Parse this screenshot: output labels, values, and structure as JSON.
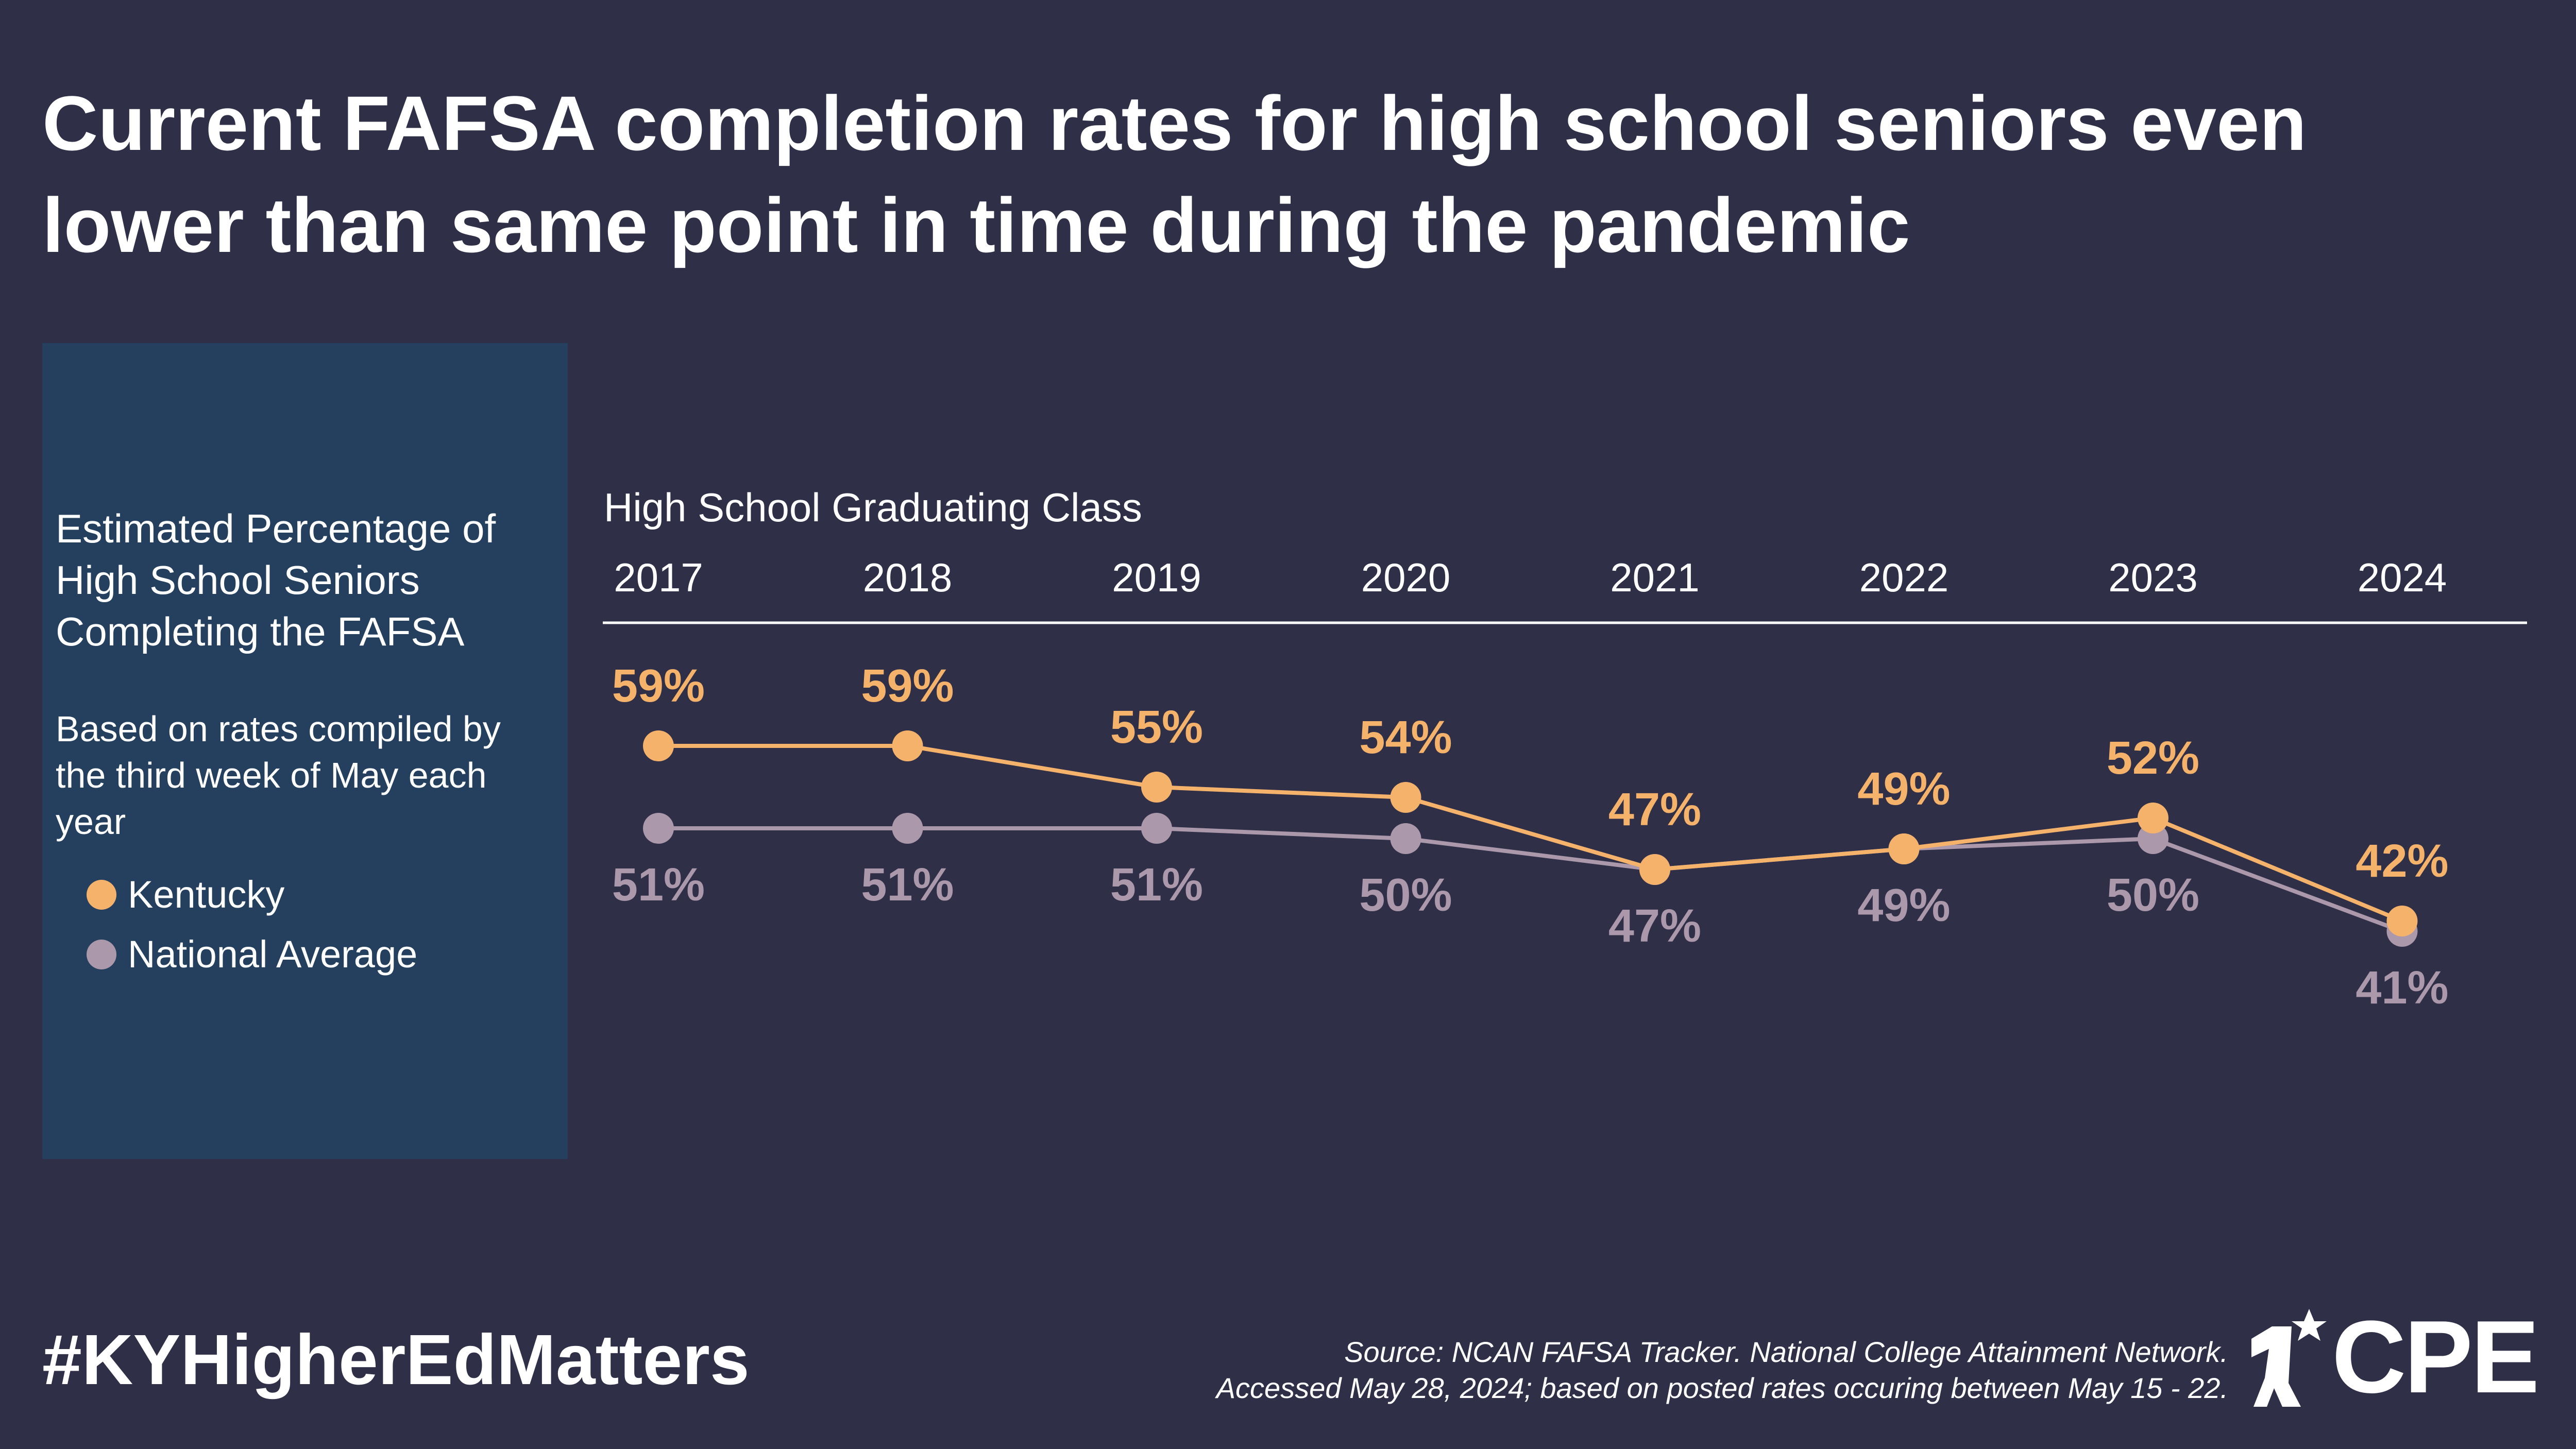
{
  "header": {
    "title": "Current FAFSA completion rates for high school seniors even lower than same point in time during the pandemic"
  },
  "sidebar": {
    "heading": "Estimated Percentage of High School Seniors Completing the FAFSA",
    "subheading": "Based on rates compiled by the third week of May each year"
  },
  "colors": {
    "background": "#2f2f48",
    "sidebar": "#24405e",
    "kentucky": "#f5b26b",
    "national": "#ab98aa"
  },
  "chart_data": {
    "type": "line",
    "xlabel": "High School Graduating Class",
    "categories": [
      "2017",
      "2018",
      "2019",
      "2020",
      "2021",
      "2022",
      "2023",
      "2024"
    ],
    "series": [
      {
        "name": "Kentucky",
        "values": [
          59,
          59,
          55,
          54,
          47,
          49,
          52,
          42
        ],
        "labels": [
          "59%",
          "59%",
          "55%",
          "54%",
          "47%",
          "49%",
          "52%",
          "42%"
        ]
      },
      {
        "name": "National Average",
        "values": [
          51,
          51,
          51,
          50,
          47,
          49,
          50,
          41
        ],
        "labels": [
          "51%",
          "51%",
          "51%",
          "50%",
          "47%",
          "49%",
          "50%",
          "41%"
        ]
      }
    ],
    "legend": "left-panel"
  },
  "footer": {
    "hashtag": "#KYHigherEdMatters",
    "source_line1": "Source: NCAN FAFSA Tracker. National College Attainment Network.",
    "source_line2": "Accessed May 28, 2024; based on posted rates occuring between May 15 - 22.",
    "logo_text": "CPE",
    "logo_icon": "cpe-person-star-icon"
  }
}
